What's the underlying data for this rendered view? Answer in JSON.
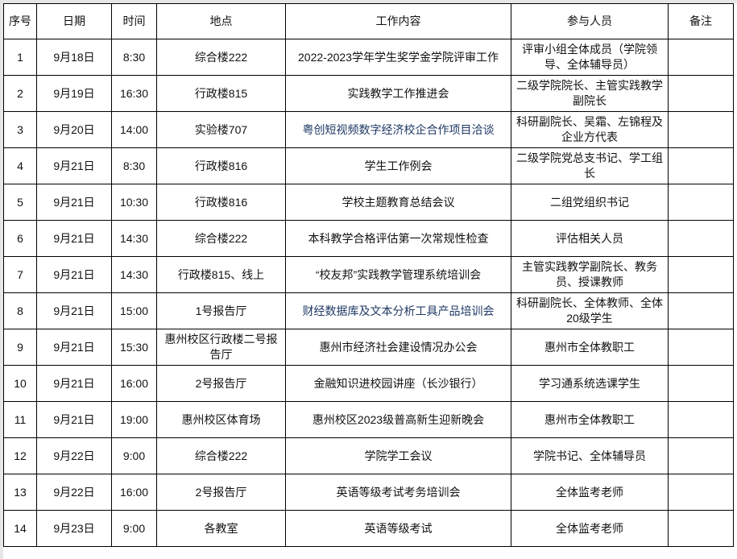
{
  "headers": [
    "序号",
    "日期",
    "时间",
    "地点",
    "工作内容",
    "参与人员",
    "备注"
  ],
  "accent_text_color": "#1f3864",
  "rows": [
    {
      "no": "1",
      "date": "9月18日",
      "time": "8:30",
      "place": "综合楼222",
      "content": "2022-2023学年学生奖学金学院评审工作",
      "people": "评审小组全体成员（学院领导、全体辅导员）",
      "note": "",
      "highlight": false
    },
    {
      "no": "2",
      "date": "9月19日",
      "time": "16:30",
      "place": "行政楼815",
      "content": "实践教学工作推进会",
      "people": "二级学院院长、主管实践教学副院长",
      "note": "",
      "highlight": false
    },
    {
      "no": "3",
      "date": "9月20日",
      "time": "14:00",
      "place": "实验楼707",
      "content": "粤创短视频数字经济校企合作项目洽谈",
      "people": "科研副院长、吴霜、左锦程及企业方代表",
      "note": "",
      "highlight": true
    },
    {
      "no": "4",
      "date": "9月21日",
      "time": "8:30",
      "place": "行政楼816",
      "content": "学生工作例会",
      "people": "二级学院党总支书记、学工组长",
      "note": "",
      "highlight": false
    },
    {
      "no": "5",
      "date": "9月21日",
      "time": "10:30",
      "place": "行政楼816",
      "content": "学校主题教育总结会议",
      "people": "二组党组织书记",
      "note": "",
      "highlight": false
    },
    {
      "no": "6",
      "date": "9月21日",
      "time": "14:30",
      "place": "综合楼222",
      "content": "本科教学合格评估第一次常规性检查",
      "people": "评估相关人员",
      "note": "",
      "highlight": false
    },
    {
      "no": "7",
      "date": "9月21日",
      "time": "14:30",
      "place": "行政楼815、线上",
      "content": "“校友邦”实践教学管理系统培训会",
      "people": "主管实践教学副院长、教务员、授课教师",
      "note": "",
      "highlight": false
    },
    {
      "no": "8",
      "date": "9月21日",
      "time": "15:00",
      "place": "1号报告厅",
      "content": "财经数据库及文本分析工具产品培训会",
      "people": "科研副院长、全体教师、全体20级学生",
      "note": "",
      "highlight": true
    },
    {
      "no": "9",
      "date": "9月21日",
      "time": "15:30",
      "place": "惠州校区行政楼二号报告厅",
      "content": "惠州市经济社会建设情况办公会",
      "people": "惠州市全体教职工",
      "note": "",
      "highlight": false
    },
    {
      "no": "10",
      "date": "9月21日",
      "time": "16:00",
      "place": "2号报告厅",
      "content": "金融知识进校园讲座（长沙银行）",
      "people": "学习通系统选课学生",
      "note": "",
      "highlight": false
    },
    {
      "no": "11",
      "date": "9月21日",
      "time": "19:00",
      "place": "惠州校区体育场",
      "content": "惠州校区2023级普高新生迎新晚会",
      "people": "惠州市全体教职工",
      "note": "",
      "highlight": false
    },
    {
      "no": "12",
      "date": "9月22日",
      "time": "9:00",
      "place": "综合楼222",
      "content": "学院学工会议",
      "people": "学院书记、全体辅导员",
      "note": "",
      "highlight": false
    },
    {
      "no": "13",
      "date": "9月22日",
      "time": "16:00",
      "place": "2号报告厅",
      "content": "英语等级考试考务培训会",
      "people": "全体监考老师",
      "note": "",
      "highlight": false
    },
    {
      "no": "14",
      "date": "9月23日",
      "time": "9:00",
      "place": "各教室",
      "content": "英语等级考试",
      "people": "全体监考老师",
      "note": "",
      "highlight": false
    }
  ]
}
